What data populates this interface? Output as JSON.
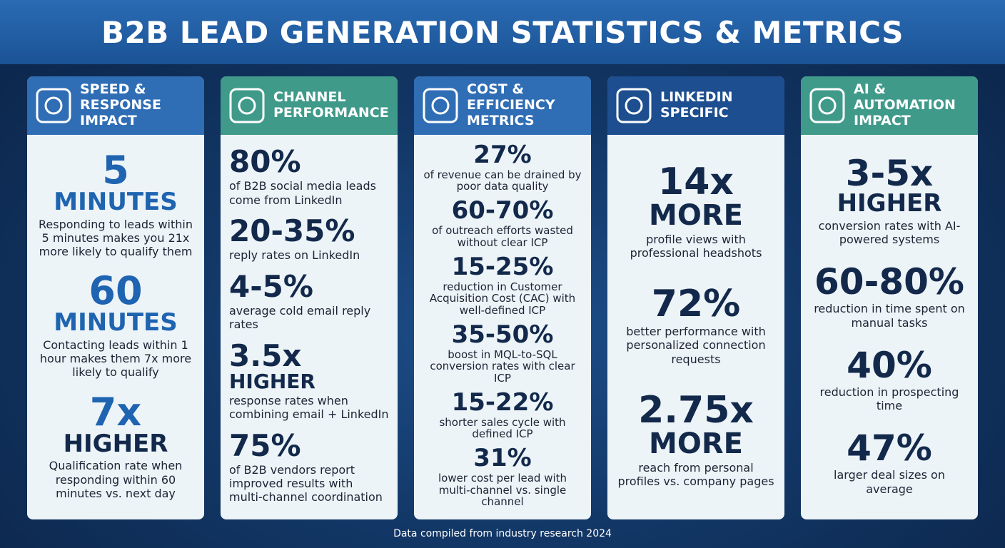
{
  "title": "B2B LEAD GENERATION STATISTICS & METRICS",
  "footer": "Data compiled from industry research 2024",
  "columns": [
    {
      "title": "SPEED & RESPONSE IMPACT",
      "stats": [
        {
          "value": "5",
          "sub": "MINUTES",
          "desc": "Responding to leads within 5 minutes makes you 21x more likely to qualify them"
        },
        {
          "value": "60",
          "sub": "MINUTES",
          "desc": "Contacting leads within 1 hour makes them 7x more likely to qualify"
        },
        {
          "value": "7x",
          "sub": "HIGHER",
          "desc": "Qualification rate when responding within 60 minutes vs. next day"
        }
      ]
    },
    {
      "title": "CHANNEL PERFORMANCE",
      "stats": [
        {
          "value": "80%",
          "desc": "of B2B social media leads come from LinkedIn"
        },
        {
          "value": "20-35%",
          "desc": "reply rates on LinkedIn"
        },
        {
          "value": "4-5%",
          "desc": "average cold email reply rates"
        },
        {
          "value": "3.5x",
          "sub": "HIGHER",
          "desc": "response rates when combining email + LinkedIn"
        },
        {
          "value": "75%",
          "desc": "of B2B vendors report improved results with multi-channel coordination"
        }
      ]
    },
    {
      "title": "COST & EFFICIENCY METRICS",
      "stats": [
        {
          "value": "27%",
          "desc": "of revenue can be drained by poor data quality"
        },
        {
          "value": "60-70%",
          "desc": "of outreach efforts wasted without clear ICP"
        },
        {
          "value": "15-25%",
          "desc": "reduction in Customer Acquisition Cost (CAC) with well-defined ICP"
        },
        {
          "value": "35-50%",
          "desc": "boost in MQL-to-SQL conversion rates with clear ICP"
        },
        {
          "value": "15-22%",
          "desc": "shorter sales cycle with defined ICP"
        },
        {
          "value": "31%",
          "desc": "lower cost per lead with multi-channel vs. single channel"
        }
      ]
    },
    {
      "title": "LINKEDIN SPECIFIC",
      "stats": [
        {
          "value": "14x",
          "sub": "MORE",
          "desc": "profile views with professional headshots"
        },
        {
          "value": "72%",
          "desc": "better performance with personalized connection requests"
        },
        {
          "value": "2.75x",
          "sub": "MORE",
          "desc": "reach from personal profiles vs. company pages"
        }
      ]
    },
    {
      "title": "AI & AUTOMATION IMPACT",
      "stats": [
        {
          "value": "3-5x",
          "sub": "HIGHER",
          "desc": "conversion rates with AI-powered systems"
        },
        {
          "value": "60-80%",
          "desc": "reduction in time spent on manual tasks"
        },
        {
          "value": "40%",
          "desc": "reduction in prospecting time"
        },
        {
          "value": "47%",
          "desc": "larger deal sizes on average"
        }
      ]
    }
  ]
}
